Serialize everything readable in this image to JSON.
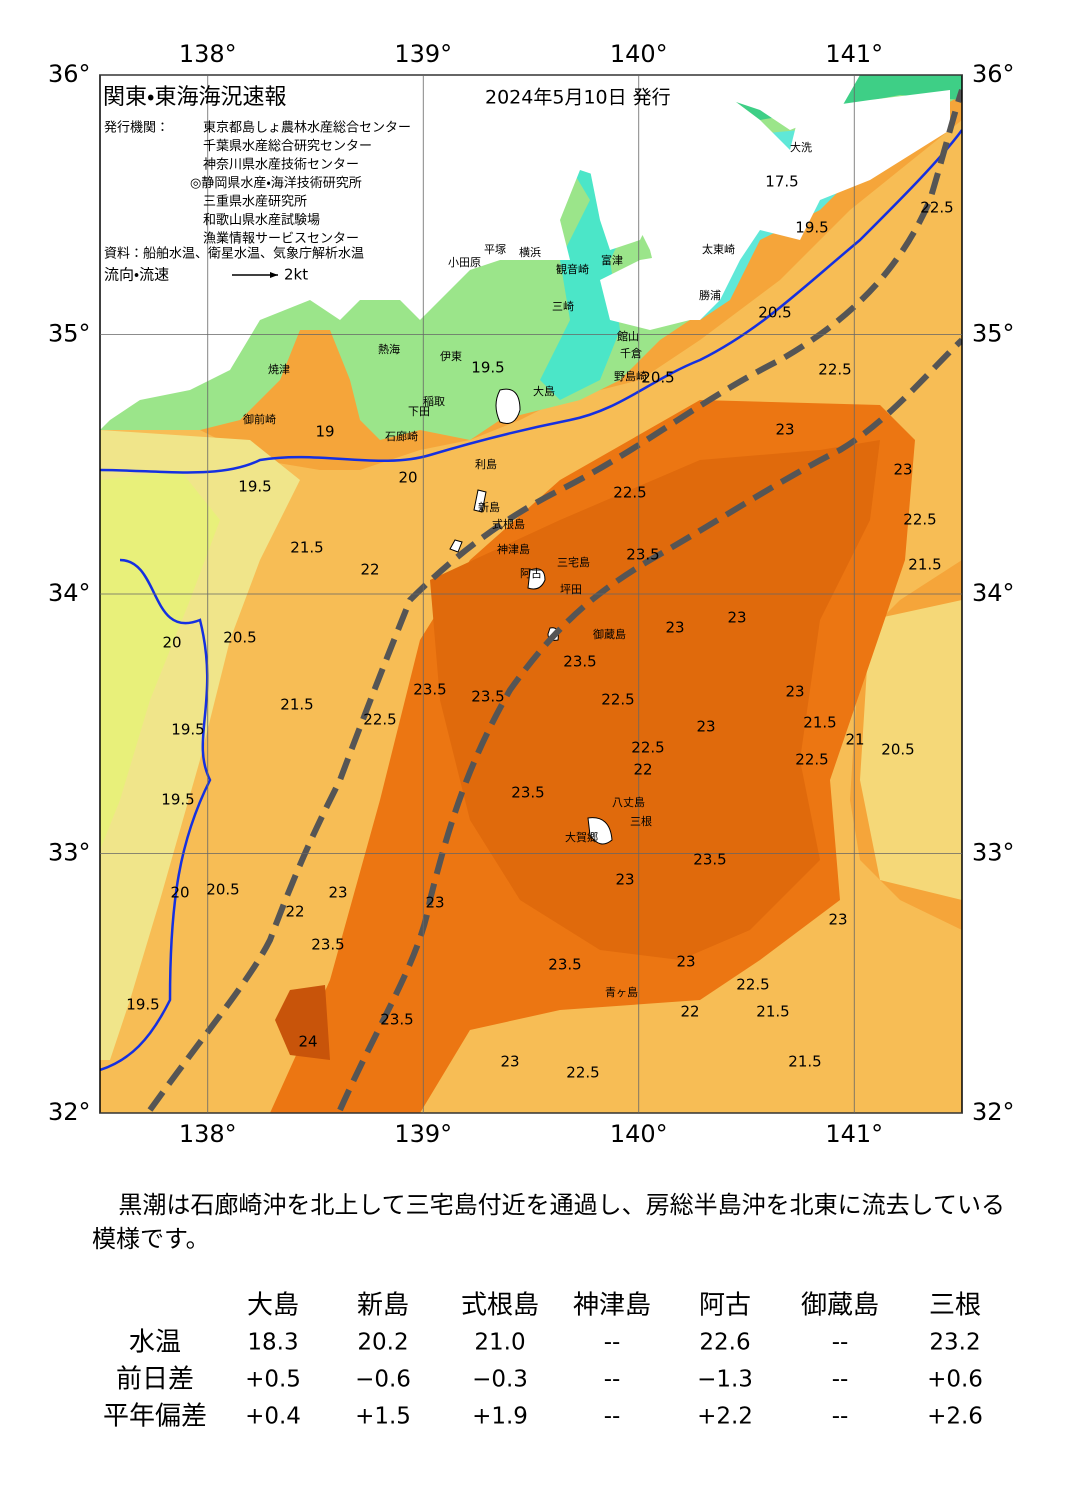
{
  "header": {
    "title": "関東・東海海況速報",
    "date": "2024年5月10日 発行",
    "publisher_label": "発行機関：",
    "publishers": [
      "東京都島しょ農林水産総合センター",
      "千葉県水産総合研究センター",
      "神奈川県水産技術センター",
      "◎静岡県水産・海洋技術研究所",
      "三重県水産研究所",
      "和歌山県水産試験場",
      "漁業情報サービスセンター"
    ],
    "source": "資料：船舶水温、衛星水温、気象庁解析水温",
    "legend_label": "流向・流速",
    "legend_speed": "2kt"
  },
  "map": {
    "xlim": [
      137.5,
      141.5
    ],
    "ylim": [
      32,
      36
    ],
    "xticks": [
      {
        "value": 138,
        "label": "138°"
      },
      {
        "value": 139,
        "label": "139°"
      },
      {
        "value": 140,
        "label": "140°"
      },
      {
        "value": 141,
        "label": "141°"
      }
    ],
    "yticks": [
      {
        "value": 32,
        "label": "32°"
      },
      {
        "value": 33,
        "label": "33°"
      },
      {
        "value": 34,
        "label": "34°"
      },
      {
        "value": 35,
        "label": "35°"
      },
      {
        "value": 36,
        "label": "36°"
      }
    ],
    "places": [
      "大島",
      "利島",
      "新島",
      "式根島",
      "神津島",
      "三宅島",
      "阿古",
      "坪田",
      "御蔵島",
      "八丈島",
      "大賀郷",
      "三根",
      "青ヶ島",
      "石廊崎",
      "下田",
      "稲取",
      "伊東",
      "熱海",
      "小田原",
      "平塚",
      "横浜",
      "富津",
      "観音崎",
      "三崎",
      "館山",
      "千倉",
      "野島崎",
      "勝浦",
      "太東崎",
      "大洗",
      "焼津",
      "御前崎"
    ],
    "contours": [
      22.5,
      23,
      22.5,
      23,
      22.5,
      21.5,
      23,
      23,
      23.5,
      22.5,
      22.5,
      22,
      23,
      23,
      22.5,
      21.5,
      21,
      20.5,
      23.5,
      23.5,
      22.5,
      21.5,
      20.5,
      20,
      19.5,
      19.5,
      20,
      20.5,
      22,
      23,
      23.5,
      24,
      19.5,
      23.5,
      23.5,
      23,
      23.5,
      23,
      23,
      22.5,
      21.5,
      21.5,
      22.5,
      23,
      22,
      23,
      23.5,
      21.5,
      22.5,
      23.5,
      20,
      19,
      19.5,
      20.5,
      20.5,
      19.5,
      17.5,
      22,
      19.5
    ]
  },
  "text": {
    "summary": "黒潮は石廊崎沖を北上して三宅島付近を通過し、房総半島沖を北東に流去している模様です。"
  },
  "table": {
    "columns": [
      "大島",
      "新島",
      "式根島",
      "神津島",
      "阿古",
      "御蔵島",
      "三根"
    ],
    "rows": [
      [
        "水温",
        "18.3",
        "20.2",
        "21.0",
        "--",
        "22.6",
        "--",
        "23.2"
      ],
      [
        "前日差",
        "+0.5",
        "−0.6",
        "−0.3",
        "--",
        "−1.3",
        "--",
        "+0.6"
      ],
      [
        "平年偏差",
        "+0.4",
        "+1.5",
        "+1.9",
        "--",
        "+2.2",
        "--",
        "+2.6"
      ]
    ]
  }
}
